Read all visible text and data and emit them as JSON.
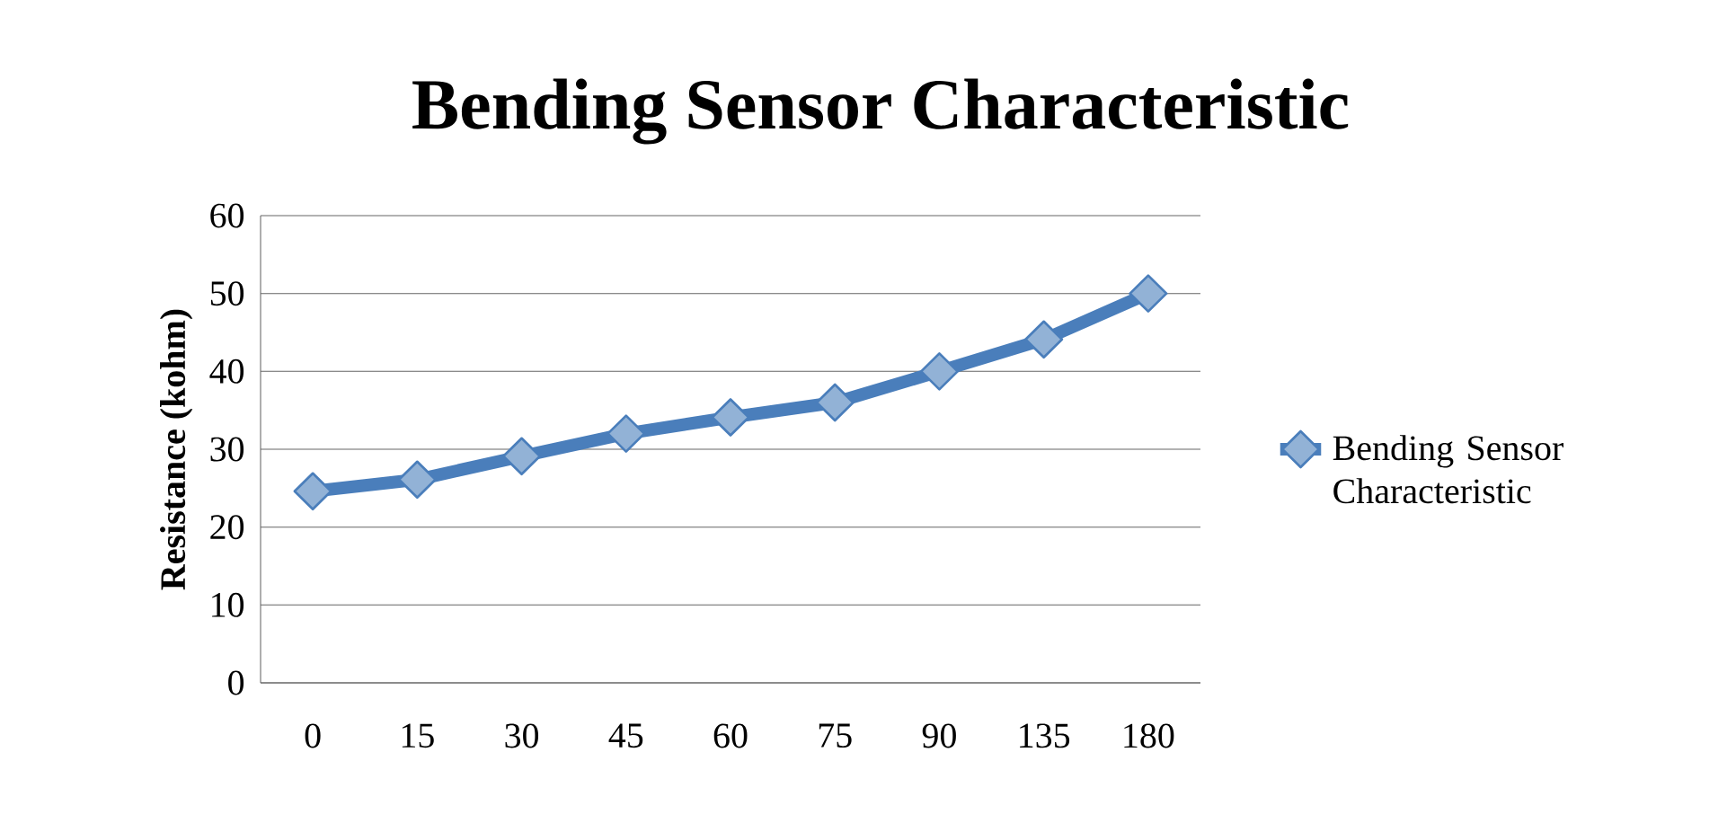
{
  "chart_data": {
    "type": "line",
    "title": "Bending Sensor Characteristic",
    "ylabel": "Resistance (kohm)",
    "categories": [
      "0",
      "15",
      "30",
      "45",
      "60",
      "75",
      "90",
      "135",
      "180"
    ],
    "series": [
      {
        "name": "Bending Sensor Characteristic",
        "color": "#4a7ebb",
        "values": [
          24.6,
          26.1,
          29.1,
          32.0,
          34.1,
          36.0,
          40.0,
          44.1,
          50.0
        ]
      }
    ],
    "ylim": [
      0,
      60
    ],
    "yticks": [
      0,
      10,
      20,
      30,
      40,
      50,
      60
    ],
    "grid": "y",
    "legend": "right",
    "marker": "diamond"
  }
}
